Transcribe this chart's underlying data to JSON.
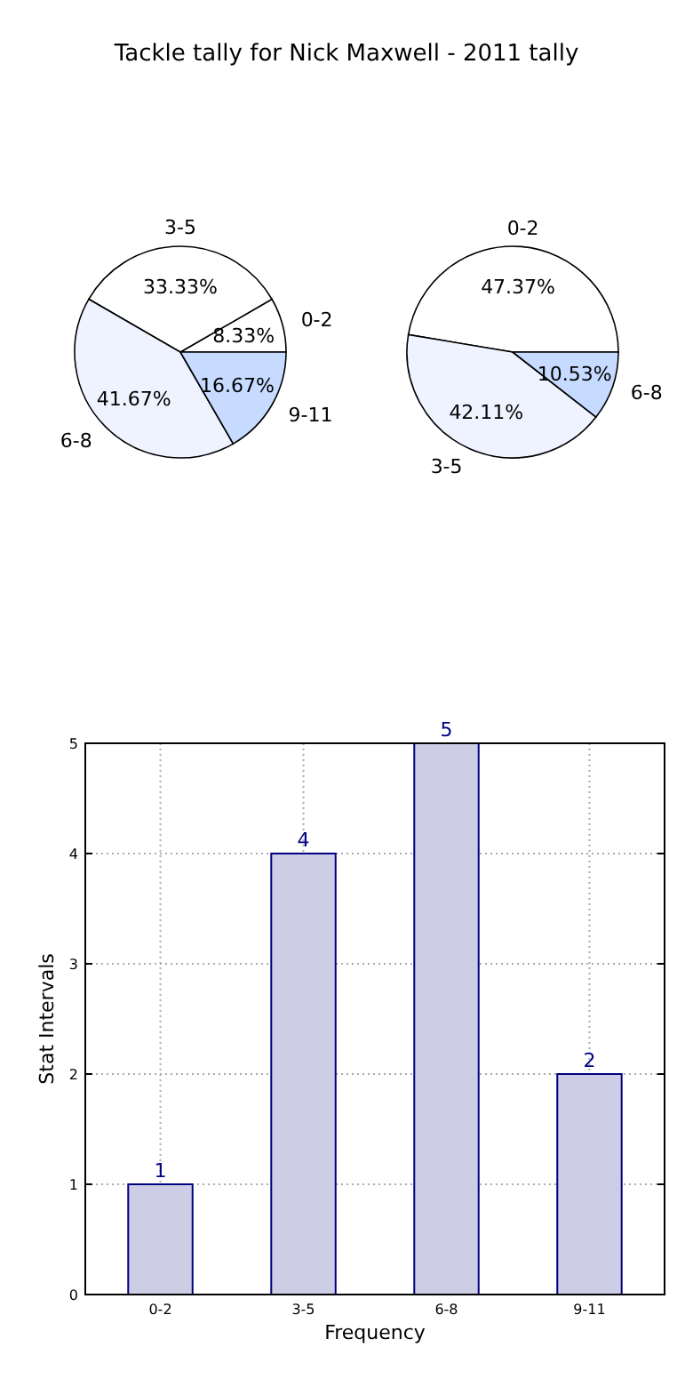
{
  "chart_data": [
    {
      "type": "pie",
      "title": "Tackle tally for Nick Maxwell - 2011 tally",
      "categories": [
        "0-2",
        "3-5",
        "6-8",
        "9-11"
      ],
      "values": [
        8.33,
        33.33,
        41.67,
        16.67
      ],
      "value_labels": [
        "8.33%",
        "33.33%",
        "41.67%",
        "16.67%"
      ],
      "colors": [
        "#ffffff",
        "#ffffff",
        "#eef3ff",
        "#c6dbff"
      ]
    },
    {
      "type": "pie",
      "categories": [
        "0-2",
        "3-5",
        "6-8"
      ],
      "values": [
        47.37,
        42.11,
        10.53
      ],
      "value_labels": [
        "47.37%",
        "42.11%",
        "10.53%"
      ],
      "colors": [
        "#ffffff",
        "#eef3ff",
        "#c6dbff"
      ]
    },
    {
      "type": "bar",
      "xlabel": "Frequency",
      "ylabel": "Stat Intervals",
      "categories": [
        "0-2",
        "3-5",
        "6-8",
        "9-11"
      ],
      "values": [
        1,
        4,
        5,
        2
      ],
      "color": "#cdcde6",
      "ylim": [
        0,
        5
      ],
      "yticks": [
        0,
        1,
        2,
        3,
        4,
        5
      ],
      "grid": true,
      "data_labels": true
    }
  ]
}
